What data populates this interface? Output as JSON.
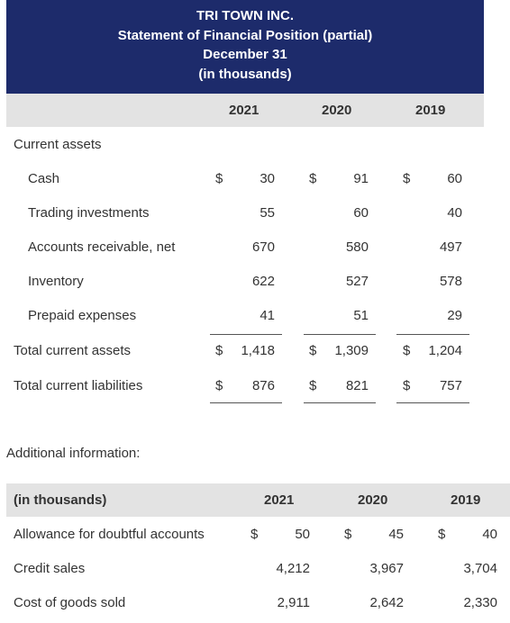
{
  "header": {
    "company": "TRI TOWN INC.",
    "statement": "Statement of Financial Position (partial)",
    "date": "December 31",
    "units": "(in thousands)"
  },
  "years": [
    "2021",
    "2020",
    "2019"
  ],
  "current_assets_label": "Current assets",
  "rows": [
    {
      "label": "Cash",
      "dollar": true,
      "values": [
        "30",
        "91",
        "60"
      ]
    },
    {
      "label": "Trading investments",
      "dollar": false,
      "values": [
        "55",
        "60",
        "40"
      ]
    },
    {
      "label": "Accounts receivable, net",
      "dollar": false,
      "values": [
        "670",
        "580",
        "497"
      ]
    },
    {
      "label": "Inventory",
      "dollar": false,
      "values": [
        "622",
        "527",
        "578"
      ]
    },
    {
      "label": "Prepaid expenses",
      "dollar": false,
      "values": [
        "41",
        "51",
        "29"
      ]
    }
  ],
  "total_current_assets": {
    "label": "Total current assets",
    "values": [
      "1,418",
      "1,309",
      "1,204"
    ]
  },
  "total_current_liabilities": {
    "label": "Total current liabilities",
    "values": [
      "876",
      "821",
      "757"
    ]
  },
  "currency_symbol": "$",
  "additional": {
    "title": "Additional information:",
    "header_label": "(in thousands)",
    "years": [
      "2021",
      "2020",
      "2019"
    ],
    "rows": [
      {
        "label": "Allowance for doubtful accounts",
        "dollar": true,
        "values": [
          "50",
          "45",
          "40"
        ]
      },
      {
        "label": "Credit sales",
        "dollar": false,
        "values": [
          "4,212",
          "3,967",
          "3,704"
        ]
      },
      {
        "label": "Cost of goods sold",
        "dollar": false,
        "values": [
          "2,911",
          "2,642",
          "2,330"
        ]
      }
    ]
  }
}
